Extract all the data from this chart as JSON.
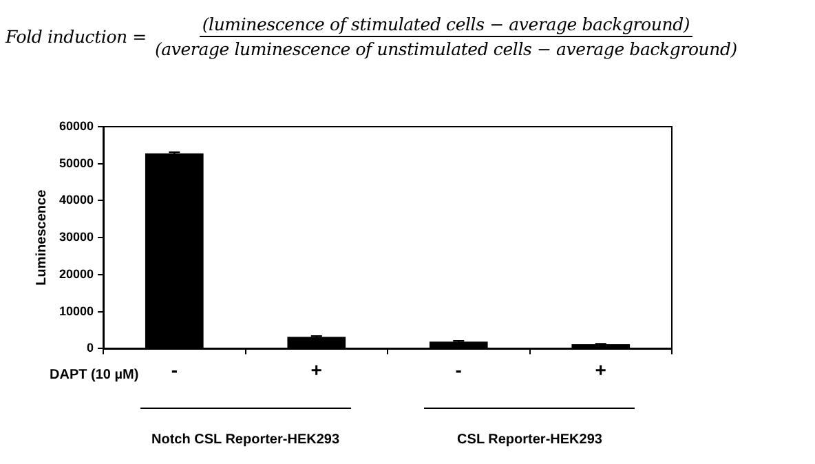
{
  "chart_data": {
    "type": "bar",
    "annotations": [
      "Fold induction =",
      "(luminescence of stimulated cells − average background)",
      "(average luminescence of unstimulated cells − average background)",
      "Notch CSL Reporter-HEK293",
      "CSL Reporter-HEK293"
    ],
    "xlabel": "DAPT (10 µM)",
    "ylabel": "Luminescence",
    "categories": [
      "-",
      "+",
      "-",
      "+"
    ],
    "values": [
      52800,
      3200,
      1900,
      1200
    ],
    "errors": [
      300,
      200,
      200,
      100
    ],
    "color": "#000000",
    "ylim": [
      0,
      60000
    ],
    "yticks": [
      0,
      10000,
      20000,
      30000,
      40000,
      50000,
      60000
    ],
    "grid": false,
    "legend": false
  }
}
